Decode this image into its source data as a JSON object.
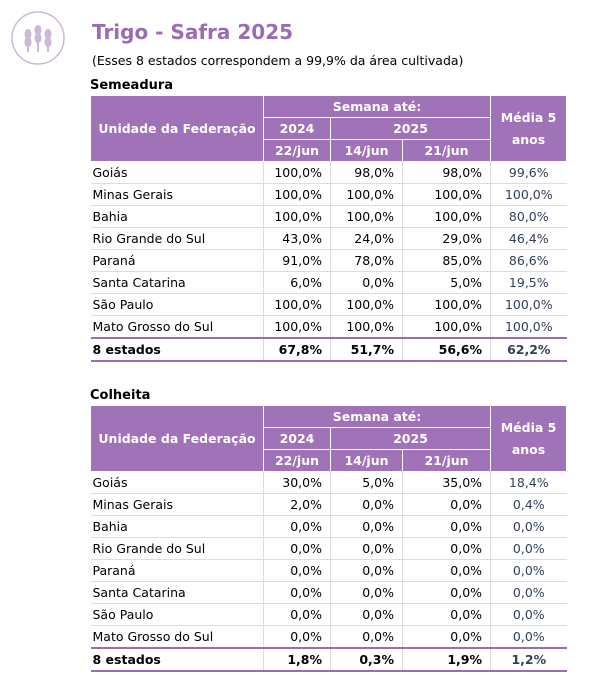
{
  "header": {
    "title": "Trigo - Safra 2025",
    "subtitle": "(Esses 8 estados correspondem a 99,9% da área cultivada)"
  },
  "sections": [
    {
      "title": "Semeadura",
      "table": {
        "head": {
          "unit": "Unidade da Federação",
          "week": "Semana até:",
          "year1": "2024",
          "year2": "2025",
          "dates": [
            "22/jun",
            "14/jun",
            "21/jun"
          ],
          "avg": "Média  5 anos"
        },
        "rows": [
          [
            "Goiás",
            "100,0%",
            "98,0%",
            "98,0%",
            "99,6%"
          ],
          [
            "Minas Gerais",
            "100,0%",
            "100,0%",
            "100,0%",
            "100,0%"
          ],
          [
            "Bahia",
            "100,0%",
            "100,0%",
            "100,0%",
            "80,0%"
          ],
          [
            "Rio Grande do Sul",
            "43,0%",
            "24,0%",
            "29,0%",
            "46,4%"
          ],
          [
            "Paraná",
            "91,0%",
            "78,0%",
            "85,0%",
            "86,6%"
          ],
          [
            "Santa Catarina",
            "6,0%",
            "0,0%",
            "5,0%",
            "19,5%"
          ],
          [
            "São Paulo",
            "100,0%",
            "100,0%",
            "100,0%",
            "100,0%"
          ],
          [
            "Mato Grosso do Sul",
            "100,0%",
            "100,0%",
            "100,0%",
            "100,0%"
          ]
        ],
        "total": [
          "8 estados",
          "67,8%",
          "51,7%",
          "56,6%",
          "62,2%"
        ]
      }
    },
    {
      "title": "Colheita",
      "table": {
        "head": {
          "unit": "Unidade da Federação",
          "week": "Semana até:",
          "year1": "2024",
          "year2": "2025",
          "dates": [
            "22/jun",
            "14/jun",
            "21/jun"
          ],
          "avg": "Média  5 anos"
        },
        "rows": [
          [
            "Goiás",
            "30,0%",
            "5,0%",
            "35,0%",
            "18,4%"
          ],
          [
            "Minas Gerais",
            "2,0%",
            "0,0%",
            "0,0%",
            "0,4%"
          ],
          [
            "Bahia",
            "0,0%",
            "0,0%",
            "0,0%",
            "0,0%"
          ],
          [
            "Rio Grande do Sul",
            "0,0%",
            "0,0%",
            "0,0%",
            "0,0%"
          ],
          [
            "Paraná",
            "0,0%",
            "0,0%",
            "0,0%",
            "0,0%"
          ],
          [
            "Santa Catarina",
            "0,0%",
            "0,0%",
            "0,0%",
            "0,0%"
          ],
          [
            "São Paulo",
            "0,0%",
            "0,0%",
            "0,0%",
            "0,0%"
          ],
          [
            "Mato Grosso do Sul",
            "0,0%",
            "0,0%",
            "0,0%",
            "0,0%"
          ]
        ],
        "total": [
          "8 estados",
          "1,8%",
          "0,3%",
          "1,9%",
          "1,2%"
        ]
      }
    }
  ]
}
